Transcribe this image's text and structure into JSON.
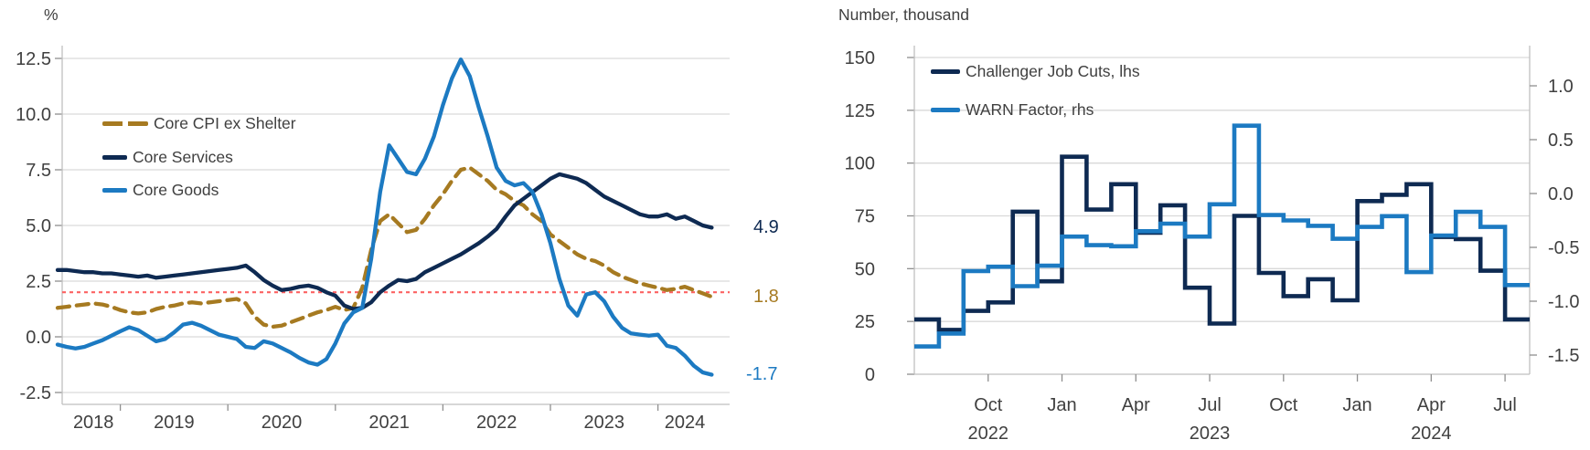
{
  "page": {
    "background": "#ffffff"
  },
  "colors": {
    "navy": "#0e2a52",
    "blue": "#1c7ac2",
    "gold": "#a67a21",
    "target_red": "#fc6262",
    "grid": "#d9d9d9",
    "axis": "#bfbfbf",
    "tick": "#8f8f8f",
    "axis_text": "#404040",
    "label_text": "#3f3f3f"
  },
  "chart_data": [
    {
      "type": "line",
      "unit_label": "%",
      "x_start": "2018-06",
      "x_end": "2024-07",
      "frequency": "monthly",
      "grid": true,
      "legend_position": "upper-left-inside",
      "ylim": [
        -2.5,
        12.5
      ],
      "y_ticks": [
        {
          "label": "12.5",
          "value": 12.5
        },
        {
          "label": "10.0",
          "value": 10.0
        },
        {
          "label": "7.5",
          "value": 7.5
        },
        {
          "label": "5.0",
          "value": 5.0
        },
        {
          "label": "2.5",
          "value": 2.5
        },
        {
          "label": "0.0",
          "value": 0.0
        },
        {
          "label": "-2.5",
          "value": -2.5
        }
      ],
      "x_tick_labels": [
        "2018",
        "2019",
        "2020",
        "2021",
        "2022",
        "2023",
        "2024"
      ],
      "target_line": {
        "value": 2.0,
        "color": "#fc6262",
        "style": "dashed"
      },
      "series": [
        {
          "name": "Core CPI ex Shelter",
          "color": "#a67a21",
          "dash": true,
          "end_label": "1.8",
          "values": [
            1.3,
            1.35,
            1.4,
            1.45,
            1.5,
            1.45,
            1.35,
            1.2,
            1.1,
            1.05,
            1.1,
            1.25,
            1.35,
            1.4,
            1.5,
            1.55,
            1.5,
            1.55,
            1.6,
            1.65,
            1.7,
            1.5,
            0.9,
            0.55,
            0.45,
            0.5,
            0.65,
            0.8,
            0.95,
            1.1,
            1.2,
            1.35,
            1.2,
            1.3,
            2.2,
            3.9,
            5.2,
            5.5,
            5.1,
            4.7,
            4.8,
            5.3,
            5.9,
            6.4,
            7.0,
            7.5,
            7.6,
            7.3,
            7.0,
            6.6,
            6.4,
            6.1,
            5.9,
            5.5,
            5.2,
            4.6,
            4.3,
            4.0,
            3.7,
            3.5,
            3.4,
            3.2,
            2.9,
            2.7,
            2.55,
            2.4,
            2.3,
            2.2,
            2.1,
            2.15,
            2.25,
            2.1,
            1.95,
            1.8
          ]
        },
        {
          "name": "Core Services",
          "color": "#0e2a52",
          "dash": false,
          "end_label": "4.9",
          "values": [
            3.0,
            3.0,
            2.95,
            2.9,
            2.9,
            2.85,
            2.85,
            2.8,
            2.75,
            2.7,
            2.75,
            2.65,
            2.7,
            2.75,
            2.8,
            2.85,
            2.9,
            2.95,
            3.0,
            3.05,
            3.1,
            3.2,
            2.9,
            2.55,
            2.3,
            2.1,
            2.15,
            2.25,
            2.3,
            2.2,
            2.0,
            1.85,
            1.4,
            1.25,
            1.3,
            1.55,
            2.0,
            2.3,
            2.55,
            2.5,
            2.6,
            2.9,
            3.1,
            3.3,
            3.5,
            3.7,
            3.95,
            4.2,
            4.5,
            4.85,
            5.4,
            5.9,
            6.2,
            6.5,
            6.8,
            7.1,
            7.3,
            7.2,
            7.1,
            6.9,
            6.6,
            6.3,
            6.1,
            5.9,
            5.7,
            5.5,
            5.4,
            5.4,
            5.5,
            5.3,
            5.4,
            5.2,
            5.0,
            4.9
          ]
        },
        {
          "name": "Core Goods",
          "color": "#1c7ac2",
          "dash": false,
          "end_label": "-1.7",
          "values": [
            -0.35,
            -0.45,
            -0.52,
            -0.45,
            -0.3,
            -0.15,
            0.05,
            0.25,
            0.43,
            0.3,
            0.05,
            -0.2,
            -0.1,
            0.2,
            0.55,
            0.63,
            0.5,
            0.3,
            0.1,
            0.0,
            -0.1,
            -0.45,
            -0.5,
            -0.2,
            -0.3,
            -0.5,
            -0.7,
            -0.95,
            -1.15,
            -1.25,
            -1.0,
            -0.3,
            0.6,
            1.1,
            1.3,
            3.5,
            6.5,
            8.6,
            8.0,
            7.4,
            7.3,
            8.0,
            9.0,
            10.4,
            11.6,
            12.45,
            11.7,
            10.3,
            9.0,
            7.6,
            7.0,
            6.8,
            6.9,
            6.5,
            5.5,
            4.2,
            2.6,
            1.4,
            0.95,
            1.9,
            2.0,
            1.6,
            0.9,
            0.4,
            0.15,
            0.1,
            0.05,
            0.1,
            -0.4,
            -0.5,
            -0.85,
            -1.3,
            -1.6,
            -1.7
          ]
        }
      ]
    },
    {
      "type": "step",
      "title": "Number, thousand",
      "x_start": "2022-07",
      "x_end": "2024-07",
      "frequency": "monthly",
      "grid": true,
      "legend_position": "upper-left-inside",
      "left_axis": {
        "lim": [
          0,
          150
        ],
        "ticks": [
          {
            "label": "0",
            "value": 0
          },
          {
            "label": "25",
            "value": 25
          },
          {
            "label": "50",
            "value": 50
          },
          {
            "label": "75",
            "value": 75
          },
          {
            "label": "100",
            "value": 100
          },
          {
            "label": "125",
            "value": 125
          },
          {
            "label": "150",
            "value": 150
          }
        ]
      },
      "right_axis": {
        "ticks": [
          {
            "label": "1.0",
            "value": 1.0
          },
          {
            "label": "0.5",
            "value": 0.5
          },
          {
            "label": "0.0",
            "value": 0.0
          },
          {
            "label": "-0.5",
            "value": -0.5
          },
          {
            "label": "-1.0",
            "value": -1.0
          },
          {
            "label": "-1.5",
            "value": -1.5
          }
        ]
      },
      "x_ticks": [
        {
          "month": "Oct",
          "year": "2022"
        },
        {
          "month": "Jan",
          "year": ""
        },
        {
          "month": "Apr",
          "year": ""
        },
        {
          "month": "Jul",
          "year": "2023"
        },
        {
          "month": "Oct",
          "year": ""
        },
        {
          "month": "Jan",
          "year": ""
        },
        {
          "month": "Apr",
          "year": "2024"
        },
        {
          "month": "Jul",
          "year": ""
        }
      ],
      "series": [
        {
          "name": "Challenger Job Cuts, lhs",
          "color": "#0e2a52",
          "axis": "left",
          "values": [
            26,
            21,
            30,
            34,
            77,
            44,
            103,
            78,
            90,
            67,
            80,
            41,
            24,
            75,
            48,
            37,
            45,
            35,
            82,
            85,
            90,
            65,
            64,
            49,
            26
          ]
        },
        {
          "name": "WARN Factor, rhs",
          "color": "#1c7ac2",
          "axis": "right",
          "values": [
            -1.42,
            -1.3,
            -0.72,
            -0.68,
            -0.86,
            -0.67,
            -0.4,
            -0.48,
            -0.49,
            -0.35,
            -0.28,
            -0.4,
            -0.1,
            0.63,
            -0.2,
            -0.25,
            -0.3,
            -0.42,
            -0.31,
            -0.21,
            -0.73,
            -0.39,
            -0.17,
            -0.31,
            -0.85
          ]
        }
      ]
    }
  ]
}
